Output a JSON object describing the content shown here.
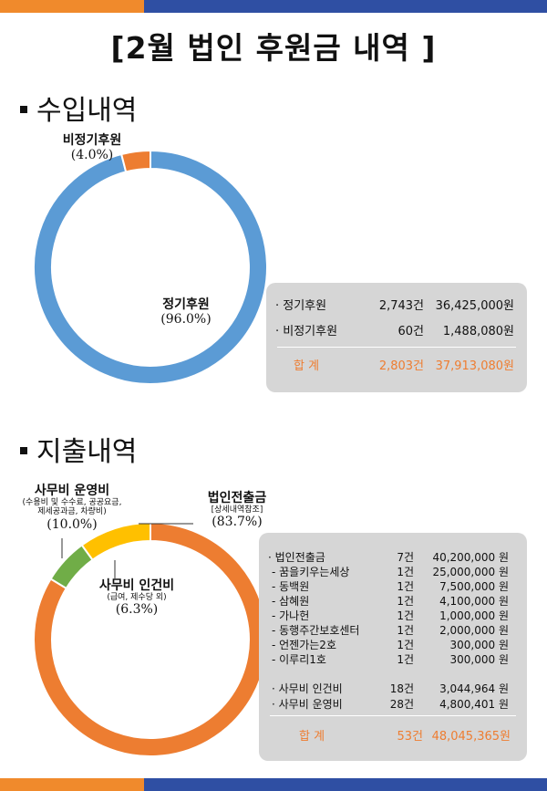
{
  "title": "[2월 법인 후원금 내역 ]",
  "income": {
    "heading": "수입내역",
    "chart_data": {
      "type": "pie",
      "categories": [
        "정기후원",
        "비정기후원"
      ],
      "values": [
        96.0,
        4.0
      ],
      "colors": [
        "#5b9bd5",
        "#ed7d31"
      ],
      "labels": [
        {
          "name": "정기후원",
          "pct": "(96.0%)"
        },
        {
          "name": "비정기후원",
          "pct": "(4.0%)"
        }
      ]
    },
    "summary": {
      "rows": [
        {
          "label": "· 정기후원",
          "count": "2,743건",
          "amount": "36,425,000원"
        },
        {
          "label": "· 비정기후원",
          "count": "60건",
          "amount": "1,488,080원"
        }
      ],
      "total": {
        "label": "합  계",
        "count": "2,803건",
        "amount": "37,913,080원"
      }
    }
  },
  "expense": {
    "heading": "지출내역",
    "chart_data": {
      "type": "pie",
      "categories": [
        "법인전출금",
        "사무비 인건비",
        "사무비 운영비"
      ],
      "values": [
        83.7,
        6.3,
        10.0
      ],
      "colors": [
        "#ed7d31",
        "#70ad47",
        "#ffc000"
      ],
      "labels": [
        {
          "name": "법인전출금",
          "sub": "[상세내역참조]",
          "pct": "(83.7%)"
        },
        {
          "name": "사무비 인건비",
          "sub": "(급여, 제수당 외)",
          "pct": "(6.3%)"
        },
        {
          "name": "사무비 운영비",
          "sub1": "(수용비 및 수수료, 공공요금,",
          "sub2": "제세공과금, 차량비)",
          "pct": "(10.0%)"
        }
      ]
    },
    "summary": {
      "main": {
        "label": "· 법인전출금",
        "count": "7건",
        "amount": "40,200,000 원"
      },
      "details": [
        {
          "label": "-     꿈을키우는세상",
          "count": "1건",
          "amount": "25,000,000 원"
        },
        {
          "label": "-     동백원",
          "count": "1건",
          "amount": "7,500,000 원"
        },
        {
          "label": "-     삼혜원",
          "count": "1건",
          "amount": "4,100,000 원"
        },
        {
          "label": "-     가나헌",
          "count": "1건",
          "amount": "1,000,000 원"
        },
        {
          "label": "-     동행주간보호센터",
          "count": "1건",
          "amount": "2,000,000 원"
        },
        {
          "label": "-     언젠가는2호",
          "count": "1건",
          "amount": "300,000 원"
        },
        {
          "label": "-     이루리1호",
          "count": "1건",
          "amount": "300,000 원"
        }
      ],
      "others": [
        {
          "label": "· 사무비 인건비",
          "count": "18건",
          "amount": "3,044,964 원"
        },
        {
          "label": "· 사무비 운영비",
          "count": "28건",
          "amount": "4,800,401 원"
        }
      ],
      "total": {
        "label": "합  계",
        "count": "53건",
        "amount": "48,045,365원"
      }
    }
  }
}
